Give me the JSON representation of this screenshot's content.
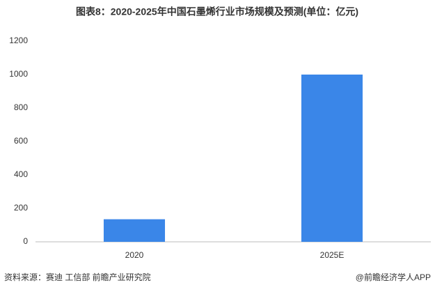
{
  "chart_data": {
    "type": "bar",
    "title": "图表8：2020-2025年中国石墨烯行业市场规模及预测(单位：亿元)",
    "categories": [
      "2020",
      "2025E"
    ],
    "values": [
      135,
      1000
    ],
    "color": "#3a86e8",
    "ylim": [
      0,
      1200
    ],
    "yticks": [
      0,
      200,
      400,
      600,
      800,
      1000,
      1200
    ],
    "grid": false,
    "source": "资料来源：赛迪 工信部 前瞻产业研究院",
    "credit": "@前瞻经济学人APP"
  }
}
